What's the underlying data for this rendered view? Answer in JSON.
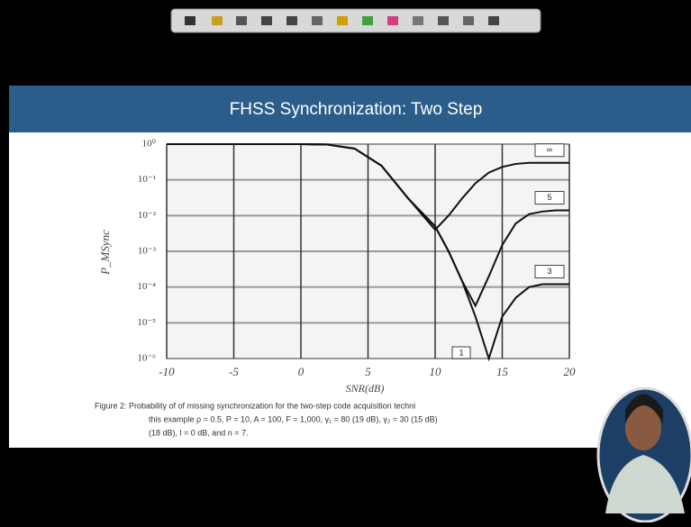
{
  "slide_title": "FHSS Synchronization: Two Step",
  "chart_data": {
    "type": "line",
    "x_label": "SNR(dB)",
    "y_label": "P_MSync",
    "x": [
      -10,
      -5,
      0,
      2,
      4,
      6,
      8,
      10,
      11,
      12,
      13,
      14,
      15,
      16,
      17,
      18,
      19,
      20
    ],
    "series": [
      {
        "name": "∞",
        "color": "#111111",
        "values": [
          1,
          1,
          1,
          0.97,
          0.75,
          0.25,
          0.03,
          0.004,
          0.01,
          0.03,
          0.08,
          0.16,
          0.23,
          0.28,
          0.3,
          0.3,
          0.3,
          0.3
        ]
      },
      {
        "name": "5",
        "color": "#111111",
        "values": [
          1,
          1,
          1,
          0.97,
          0.75,
          0.25,
          0.03,
          0.005,
          0.001,
          0.00015,
          3e-05,
          0.0002,
          0.0015,
          0.006,
          0.011,
          0.013,
          0.014,
          0.014
        ]
      },
      {
        "name": "3",
        "color": "#111111",
        "values": [
          1,
          1,
          1,
          0.97,
          0.75,
          0.25,
          0.03,
          0.005,
          0.001,
          0.00015,
          1.5e-05,
          1e-06,
          1.5e-05,
          5e-05,
          0.0001,
          0.00012,
          0.00012,
          0.00012
        ]
      }
    ],
    "annotations": [
      "1"
    ],
    "xlim": [
      -10,
      20
    ],
    "xticks": [
      -10,
      -5,
      0,
      5,
      10,
      15,
      20
    ],
    "ylim": [
      1e-06,
      1
    ],
    "log_y": true,
    "yticks": [
      {
        "value": 1,
        "label": "10⁰"
      },
      {
        "value": 0.1,
        "label": "10⁻¹"
      },
      {
        "value": 0.01,
        "label": "10⁻²"
      },
      {
        "value": 0.001,
        "label": "10⁻³"
      },
      {
        "value": 0.0001,
        "label": "10⁻⁴"
      },
      {
        "value": 1e-05,
        "label": "10⁻⁵"
      },
      {
        "value": 1e-06,
        "label": "10⁻⁶"
      }
    ],
    "grid": true
  },
  "caption": [
    "Figure 2: Probability of of missing synchronization for the two-step code acquisition techni",
    "this example ρ = 0.5, P = 10, A = 100, F = 1,000, γ₁ = 80 (19 dB), γ₂ = 30 (15 dB)",
    "(18 dB), l = 0 dB, and n = 7."
  ]
}
